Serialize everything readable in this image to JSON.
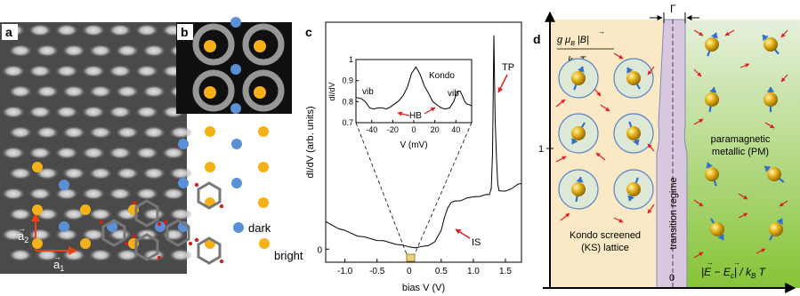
{
  "panel_a": {
    "label": "a",
    "vector_a1": "a",
    "vector_a1_sub": "1",
    "vector_a2": "a",
    "vector_a2_sub": "2"
  },
  "panel_b": {
    "label": "b",
    "legend_dark": "dark",
    "legend_bright": "bright",
    "colors": {
      "dark": "#5b8fd6",
      "bright": "#f5b117"
    }
  },
  "panel_c": {
    "label": "c",
    "xlabel": "bias V (V)",
    "ylabel": "dI/dV (arb. units)",
    "x_ticks": [
      "-1.0",
      "-0.5",
      "0",
      "0.5",
      "1.0",
      "1.5"
    ],
    "y_ticks": [
      "0"
    ],
    "annotations": {
      "tp": "TP",
      "is": "IS"
    },
    "inset": {
      "xlabel": "V (mV)",
      "ylabel": "dI/dV",
      "x_ticks": [
        "-40",
        "-20",
        "0",
        "20",
        "40"
      ],
      "y_ticks": [
        "0.7",
        "0.8",
        "0.9",
        "1"
      ],
      "labels": {
        "kondo": "Kondo",
        "vib_left": "vib",
        "vib_right": "vib",
        "hb": "HB"
      }
    }
  },
  "panel_d": {
    "label": "d",
    "gamma": "Γ",
    "y_tick": "1",
    "x_tick": "0",
    "y_axis_label_num": "g μ",
    "y_axis_label_num_sub": "B",
    "y_axis_label_b": "B",
    "y_axis_label_den": "k",
    "y_axis_label_den_sub": "B",
    "y_axis_label_den_t": "T",
    "x_axis_label_e": "E",
    "x_axis_label_ec": "E",
    "x_axis_label_ec_sub": "c",
    "x_axis_label_kb": "/ k",
    "x_axis_label_kb_sub": "B",
    "x_axis_label_t": "T",
    "region_left_line1": "Kondo screened",
    "region_left_line2": "(KS) lattice",
    "region_center": "transition regime",
    "region_right_line1": "paramagnetic",
    "region_right_line2": "metallic (PM)",
    "colors": {
      "ks": "#fbe8c4",
      "transition": "#d9c7e0",
      "pm_top": "#e4efd9",
      "pm_bottom": "#8ec83c"
    }
  },
  "chart_data": [
    {
      "type": "line",
      "title": "",
      "xlabel": "bias V (V)",
      "ylabel": "dI/dV (arb. units)",
      "xlim": [
        -1.3,
        1.75
      ],
      "series": [
        {
          "x": [
            -1.3,
            -1.2,
            -1.1,
            -1.0,
            -0.9,
            -0.8,
            -0.7,
            -0.6,
            -0.5,
            -0.4,
            -0.3,
            -0.2,
            -0.1,
            0.0,
            0.1,
            0.2,
            0.3,
            0.4,
            0.5,
            0.55,
            0.6,
            0.65,
            0.7,
            0.8,
            0.9,
            1.0,
            1.1,
            1.2,
            1.25,
            1.28,
            1.3,
            1.32,
            1.34,
            1.36,
            1.38,
            1.4,
            1.45,
            1.5,
            1.6,
            1.7,
            1.75
          ],
          "y": [
            0.62,
            0.55,
            0.48,
            0.42,
            0.36,
            0.31,
            0.27,
            0.24,
            0.21,
            0.18,
            0.15,
            0.12,
            0.08,
            0.05,
            0.04,
            0.05,
            0.08,
            0.18,
            0.42,
            0.72,
            0.95,
            1.05,
            1.1,
            1.12,
            1.16,
            1.2,
            1.22,
            1.24,
            1.25,
            1.4,
            2.2,
            4.9,
            3.0,
            2.1,
            1.5,
            1.35,
            1.32,
            1.33,
            1.4,
            1.48,
            1.5
          ]
        }
      ]
    },
    {
      "type": "line",
      "title": "",
      "xlabel": "V (mV)",
      "ylabel": "dI/dV",
      "xlim": [
        -55,
        55
      ],
      "ylim": [
        0.7,
        1.0
      ],
      "series": [
        {
          "x": [
            -55,
            -50,
            -46,
            -42,
            -38,
            -34,
            -30,
            -26,
            -22,
            -18,
            -14,
            -10,
            -6,
            -2,
            2,
            6,
            10,
            14,
            18,
            22,
            26,
            30,
            34,
            38,
            40,
            42,
            44,
            46,
            48,
            50,
            53,
            55
          ],
          "y": [
            0.82,
            0.815,
            0.8,
            0.77,
            0.765,
            0.77,
            0.77,
            0.765,
            0.775,
            0.79,
            0.805,
            0.83,
            0.87,
            0.935,
            0.965,
            0.93,
            0.875,
            0.84,
            0.8,
            0.785,
            0.77,
            0.765,
            0.77,
            0.8,
            0.83,
            0.85,
            0.85,
            0.83,
            0.805,
            0.79,
            0.785,
            0.78
          ]
        }
      ]
    }
  ]
}
